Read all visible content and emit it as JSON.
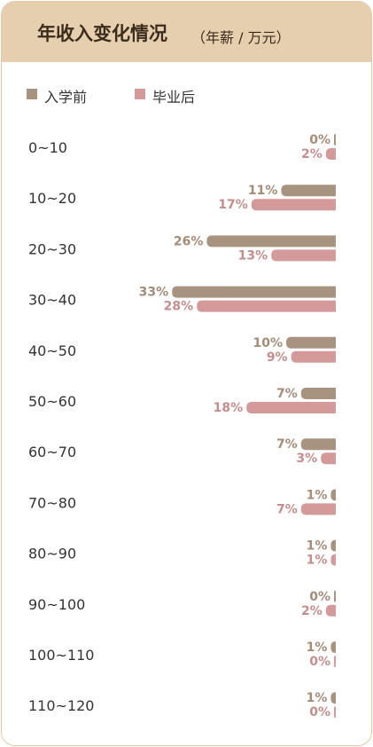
{
  "header": {
    "title": "年收入变化情况",
    "subtitle": "（年薪 / 万元）"
  },
  "colors": {
    "header_bg": "#e6cfae",
    "before": "#a89280",
    "after": "#d49a9a",
    "before_text": "#a48c78",
    "after_text": "#c48e8e"
  },
  "chart_data": {
    "type": "bar",
    "orientation": "horizontal",
    "legend_position": "top-left",
    "categories": [
      "0~10",
      "10~20",
      "20~30",
      "30~40",
      "40~50",
      "50~60",
      "60~70",
      "70~80",
      "80~90",
      "90~100",
      "100~110",
      "110~120"
    ],
    "series": [
      {
        "name": "入学前",
        "values": [
          0,
          11,
          26,
          33,
          10,
          7,
          7,
          1,
          1,
          0,
          1,
          1
        ],
        "labels": [
          "0%",
          "11%",
          "26%",
          "33%",
          "10%",
          "7%",
          "7%",
          "1%",
          "1%",
          "0%",
          "1%",
          "1%"
        ]
      },
      {
        "name": "毕业后",
        "values": [
          2,
          17,
          13,
          28,
          9,
          18,
          3,
          7,
          1,
          2,
          0,
          0
        ],
        "labels": [
          "2%",
          "17%",
          "13%",
          "28%",
          "9%",
          "18%",
          "3%",
          "7%",
          "1%",
          "2%",
          "0%",
          "0%"
        ]
      }
    ],
    "unit": "%",
    "grid": false
  }
}
